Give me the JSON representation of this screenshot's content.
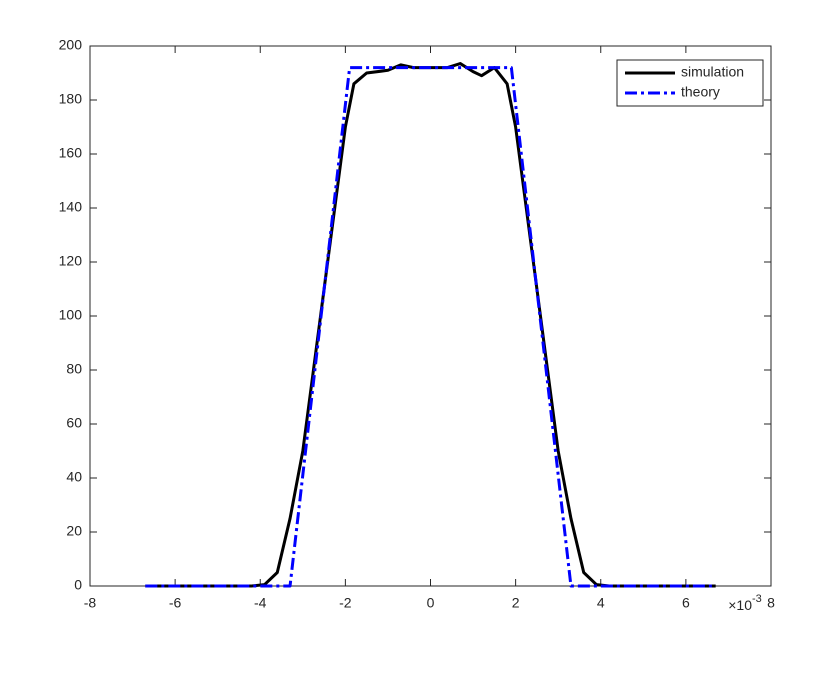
{
  "chart_data": {
    "type": "line",
    "x_exponent_label": {
      "base": "×10",
      "exponent": "-3"
    },
    "xlim": [
      -8,
      8
    ],
    "xticks": [
      -8,
      -6,
      -4,
      -2,
      0,
      2,
      4,
      6,
      8
    ],
    "ylim": [
      0,
      200
    ],
    "yticks": [
      0,
      20,
      40,
      60,
      80,
      100,
      120,
      140,
      160,
      180,
      200
    ],
    "grid": false,
    "box": true,
    "legend": "northeast",
    "series": [
      {
        "name": "simulation",
        "color": "#000000",
        "style": "solid",
        "x": [
          -6.7,
          -4.2,
          -3.9,
          -3.6,
          -3.3,
          -3.0,
          -2.5,
          -2.0,
          -1.8,
          -1.5,
          -1.0,
          -0.7,
          -0.4,
          0,
          0.4,
          0.7,
          1.0,
          1.2,
          1.5,
          1.8,
          2.0,
          2.5,
          3.0,
          3.3,
          3.6,
          3.9,
          4.2,
          6.7
        ],
        "values": [
          0,
          0,
          0.5,
          5,
          25,
          50,
          110,
          170,
          186,
          190,
          191,
          193,
          192,
          192,
          192,
          193.5,
          190.5,
          189,
          192,
          186,
          170,
          110,
          50,
          25,
          5,
          0.5,
          0,
          0
        ]
      },
      {
        "name": "theory",
        "color": "#0000ff",
        "style": "dashdot",
        "x": [
          -6.7,
          -3.3,
          -1.9,
          1.9,
          3.3,
          6.7
        ],
        "values": [
          0,
          0,
          192,
          192,
          0,
          0
        ]
      }
    ]
  }
}
